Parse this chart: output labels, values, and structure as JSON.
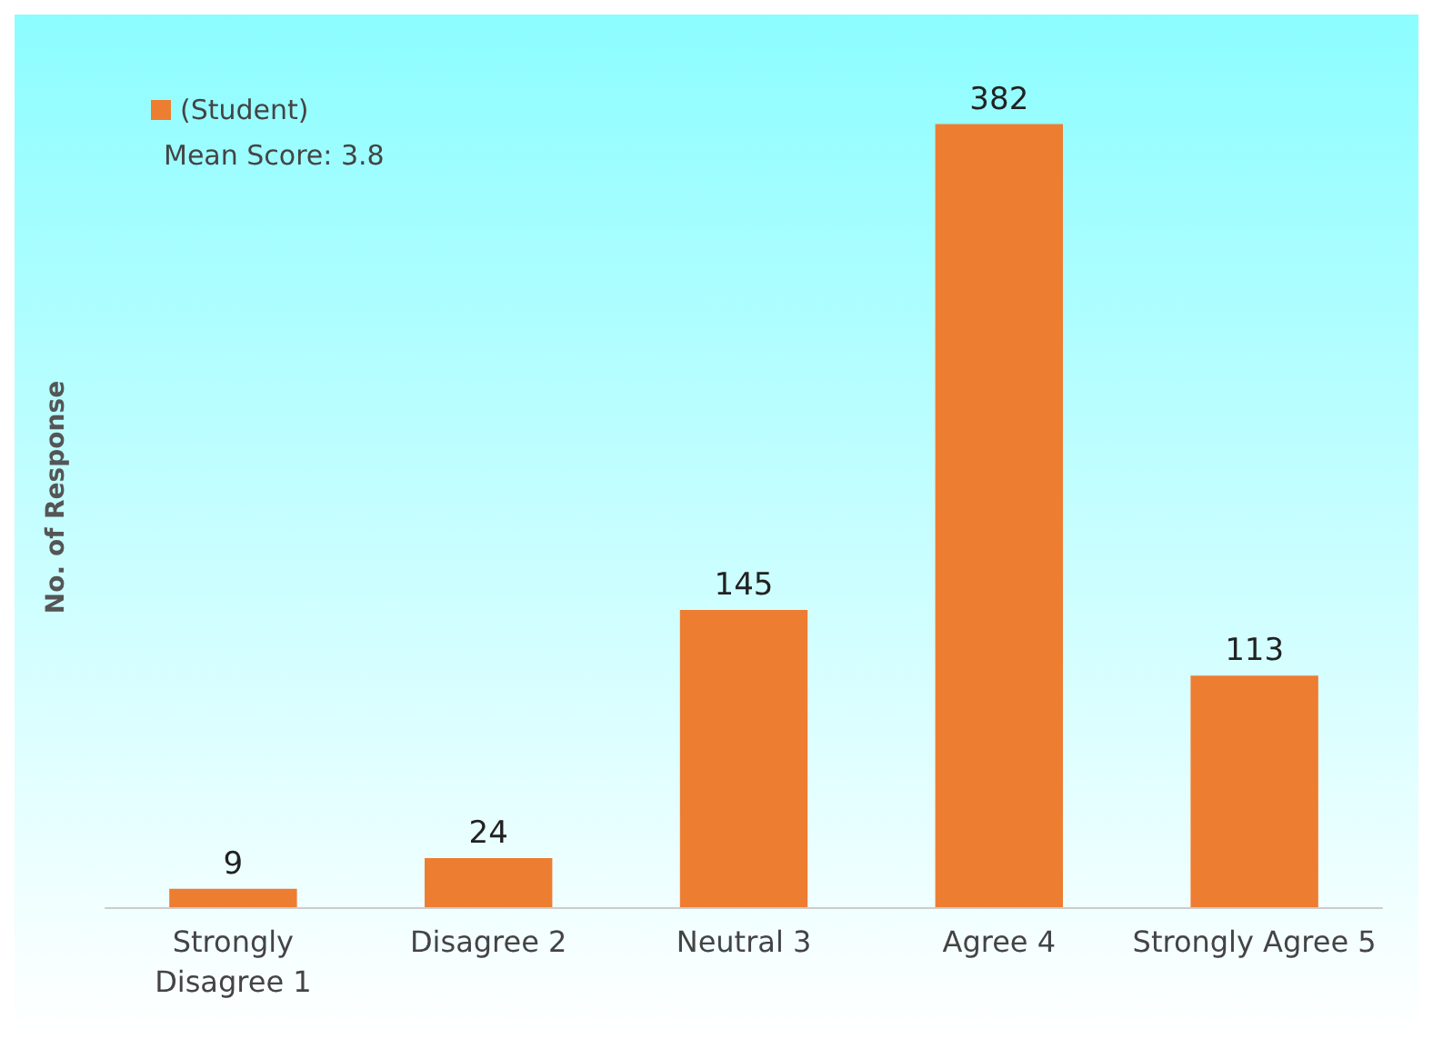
{
  "chart_data": {
    "type": "bar",
    "ylabel": "No. of Response",
    "categories": [
      "Strongly\nDisagree 1",
      "Disagree 2",
      "Neutral 3",
      "Agree 4",
      "Strongly Agree 5"
    ],
    "series": [
      {
        "name": "(Student)",
        "color": "#ed7d31",
        "values": [
          9,
          24,
          145,
          382,
          113
        ]
      }
    ],
    "annotations": [
      "Mean Score: 3.8"
    ],
    "data_labels": true,
    "legend": "top left",
    "grid": false
  }
}
